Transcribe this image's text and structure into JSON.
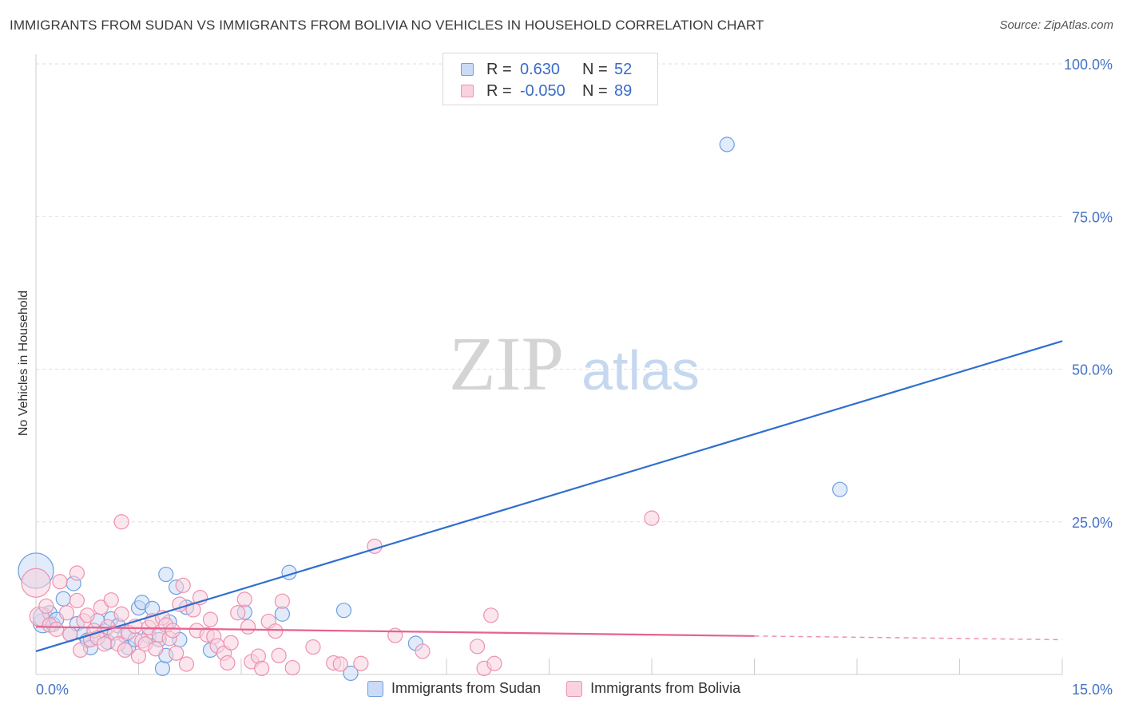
{
  "title": "IMMIGRANTS FROM SUDAN VS IMMIGRANTS FROM BOLIVIA NO VEHICLES IN HOUSEHOLD CORRELATION CHART",
  "source": "Source: ZipAtlas.com",
  "watermark": {
    "zip": "ZIP",
    "atlas": "atlas"
  },
  "legend_stats": [
    {
      "r_label": "R =",
      "r_value": "0.630",
      "n_label": "N =",
      "n_value": "52"
    },
    {
      "r_label": "R =",
      "r_value": "-0.050",
      "n_label": "N =",
      "n_value": "89"
    }
  ],
  "chart_data": {
    "type": "scatter",
    "title": "IMMIGRANTS FROM SUDAN VS IMMIGRANTS FROM BOLIVIA NO VEHICLES IN HOUSEHOLD CORRELATION CHART",
    "xlabel": "",
    "ylabel": "No Vehicles in Household",
    "xlim": [
      0,
      15
    ],
    "ylim": [
      0,
      100
    ],
    "x_tick_labels": [
      "0.0%",
      "15.0%"
    ],
    "y_ticks": [
      25,
      50,
      75,
      100
    ],
    "y_tick_labels": [
      "25.0%",
      "50.0%",
      "75.0%",
      "100.0%"
    ],
    "grid": true,
    "legend_position": "bottom-center",
    "series": [
      {
        "name": "Immigrants from Sudan",
        "color": "#6f9fe0",
        "fill": "#c9dbf5",
        "trend_color": "#2f6fce",
        "trend": {
          "x": [
            0,
            15
          ],
          "y": [
            3.8,
            54.6
          ]
        },
        "points": [
          [
            0.0,
            17.0,
            22
          ],
          [
            0.1,
            8.4,
            12
          ],
          [
            0.1,
            9.4,
            12
          ],
          [
            0.2,
            10.1,
            9
          ],
          [
            0.25,
            8.2,
            9
          ],
          [
            0.3,
            9.0,
            9
          ],
          [
            0.4,
            12.4,
            9
          ],
          [
            0.5,
            6.6,
            9
          ],
          [
            0.55,
            14.9,
            9
          ],
          [
            0.6,
            8.3,
            9
          ],
          [
            0.7,
            6.6,
            9
          ],
          [
            0.75,
            5.6,
            9
          ],
          [
            0.8,
            4.4,
            9
          ],
          [
            0.9,
            8.8,
            9
          ],
          [
            1.0,
            7.1,
            9
          ],
          [
            1.05,
            5.3,
            9
          ],
          [
            1.1,
            9.1,
            9
          ],
          [
            1.2,
            8.0,
            9
          ],
          [
            1.3,
            6.4,
            9
          ],
          [
            1.35,
            4.4,
            9
          ],
          [
            1.45,
            5.7,
            9
          ],
          [
            1.5,
            10.9,
            9
          ],
          [
            1.55,
            11.8,
            9
          ],
          [
            1.65,
            6.3,
            9
          ],
          [
            1.7,
            10.8,
            9
          ],
          [
            1.8,
            5.7,
            9
          ],
          [
            1.85,
            1.0,
            9
          ],
          [
            1.9,
            3.1,
            9
          ],
          [
            1.95,
            8.6,
            9
          ],
          [
            1.9,
            16.4,
            9
          ],
          [
            2.05,
            14.3,
            9
          ],
          [
            2.1,
            5.7,
            9
          ],
          [
            2.2,
            11.0,
            9
          ],
          [
            2.55,
            4.0,
            9
          ],
          [
            3.05,
            10.2,
            9
          ],
          [
            3.6,
            9.9,
            9
          ],
          [
            3.7,
            16.7,
            9
          ],
          [
            4.5,
            10.5,
            9
          ],
          [
            4.6,
            0.2,
            9
          ],
          [
            5.55,
            5.1,
            9
          ],
          [
            10.1,
            86.8,
            9
          ],
          [
            11.75,
            30.3,
            9
          ]
        ]
      },
      {
        "name": "Immigrants from Bolivia",
        "color": "#ee91ae",
        "fill": "#f8d2de",
        "trend_color": "#e5638f",
        "trend": {
          "x": [
            0,
            10.5
          ],
          "y": [
            7.8,
            6.3
          ]
        },
        "trend_dashed": {
          "x": [
            10.5,
            15
          ],
          "y": [
            6.3,
            5.7
          ]
        },
        "points": [
          [
            0.0,
            15.0,
            18
          ],
          [
            0.05,
            9.5,
            12
          ],
          [
            0.15,
            11.2,
            9
          ],
          [
            0.2,
            8.1,
            9
          ],
          [
            0.3,
            7.4,
            9
          ],
          [
            0.35,
            15.2,
            9
          ],
          [
            0.45,
            10.1,
            9
          ],
          [
            0.5,
            6.6,
            9
          ],
          [
            0.6,
            12.1,
            9
          ],
          [
            0.6,
            16.6,
            9
          ],
          [
            0.65,
            4.0,
            9
          ],
          [
            0.7,
            8.8,
            9
          ],
          [
            0.75,
            9.7,
            9
          ],
          [
            0.8,
            5.7,
            9
          ],
          [
            0.85,
            7.2,
            9
          ],
          [
            0.9,
            6.0,
            9
          ],
          [
            0.95,
            11.0,
            9
          ],
          [
            1.0,
            5.0,
            9
          ],
          [
            1.05,
            7.8,
            9
          ],
          [
            1.1,
            12.2,
            9
          ],
          [
            1.15,
            6.8,
            9
          ],
          [
            1.2,
            5.0,
            9
          ],
          [
            1.25,
            9.9,
            9
          ],
          [
            1.25,
            25.0,
            9
          ],
          [
            1.3,
            4.0,
            9
          ],
          [
            1.35,
            6.9,
            9
          ],
          [
            1.45,
            7.9,
            9
          ],
          [
            1.5,
            3.0,
            9
          ],
          [
            1.55,
            5.5,
            9
          ],
          [
            1.6,
            5.0,
            9
          ],
          [
            1.65,
            7.7,
            9
          ],
          [
            1.7,
            8.8,
            9
          ],
          [
            1.75,
            4.2,
            9
          ],
          [
            1.8,
            6.5,
            9
          ],
          [
            1.85,
            9.3,
            9
          ],
          [
            1.9,
            8.1,
            9
          ],
          [
            1.95,
            5.9,
            9
          ],
          [
            2.0,
            7.2,
            9
          ],
          [
            2.05,
            3.5,
            9
          ],
          [
            2.1,
            11.5,
            9
          ],
          [
            2.15,
            14.6,
            9
          ],
          [
            2.2,
            1.7,
            9
          ],
          [
            2.3,
            10.6,
            9
          ],
          [
            2.35,
            7.2,
            9
          ],
          [
            2.4,
            12.6,
            9
          ],
          [
            2.5,
            6.5,
            9
          ],
          [
            2.55,
            9.0,
            9
          ],
          [
            2.6,
            6.2,
            9
          ],
          [
            2.65,
            4.7,
            9
          ],
          [
            2.75,
            3.5,
            9
          ],
          [
            2.8,
            1.9,
            9
          ],
          [
            2.85,
            5.2,
            9
          ],
          [
            2.95,
            10.1,
            9
          ],
          [
            3.05,
            12.3,
            9
          ],
          [
            3.1,
            7.8,
            9
          ],
          [
            3.15,
            2.1,
            9
          ],
          [
            3.25,
            3.0,
            9
          ],
          [
            3.3,
            1.0,
            9
          ],
          [
            3.4,
            8.7,
            9
          ],
          [
            3.5,
            7.1,
            9
          ],
          [
            3.55,
            3.1,
            9
          ],
          [
            3.6,
            12.0,
            9
          ],
          [
            3.75,
            1.1,
            9
          ],
          [
            4.05,
            4.5,
            9
          ],
          [
            4.35,
            1.9,
            9
          ],
          [
            4.45,
            1.7,
            9
          ],
          [
            4.75,
            1.8,
            9
          ],
          [
            4.95,
            21.0,
            9
          ],
          [
            5.25,
            6.4,
            9
          ],
          [
            5.65,
            3.8,
            9
          ],
          [
            6.45,
            4.6,
            9
          ],
          [
            6.55,
            1.0,
            9
          ],
          [
            6.65,
            9.7,
            9
          ],
          [
            6.7,
            1.8,
            9
          ],
          [
            9.0,
            25.6,
            9
          ]
        ]
      }
    ]
  }
}
